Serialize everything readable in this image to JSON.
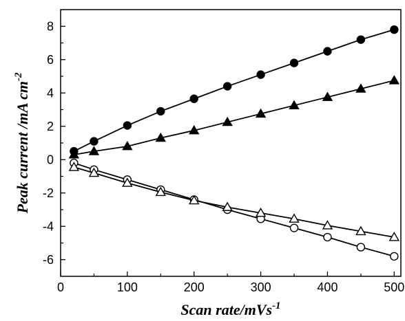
{
  "chart_data": {
    "type": "line",
    "title": "",
    "xlabel": {
      "text": "Scan rate/mVs",
      "sup": "-1"
    },
    "ylabel": {
      "text": "Peak current /mA cm",
      "sup": "-2"
    },
    "xlim": [
      0,
      510
    ],
    "ylim": [
      -7,
      9
    ],
    "xticks": [
      0,
      100,
      200,
      300,
      400,
      500
    ],
    "yticks": [
      -6,
      -4,
      -2,
      0,
      2,
      4,
      6,
      8
    ],
    "grid": false,
    "legend": "none",
    "x": [
      20,
      50,
      100,
      150,
      200,
      250,
      300,
      350,
      400,
      450,
      500
    ],
    "series": [
      {
        "marker": "circle-filled",
        "values": [
          0.5,
          1.1,
          2.05,
          2.9,
          3.65,
          4.4,
          5.1,
          5.8,
          6.5,
          7.2,
          7.8
        ]
      },
      {
        "marker": "triangle-filled",
        "values": [
          0.3,
          0.5,
          0.8,
          1.3,
          1.75,
          2.25,
          2.75,
          3.25,
          3.75,
          4.25,
          4.75
        ]
      },
      {
        "marker": "circle-open",
        "values": [
          -0.2,
          -0.6,
          -1.2,
          -1.8,
          -2.4,
          -3.0,
          -3.55,
          -4.1,
          -4.65,
          -5.25,
          -5.8
        ]
      },
      {
        "marker": "triangle-open",
        "values": [
          -0.45,
          -0.8,
          -1.4,
          -1.95,
          -2.45,
          -2.85,
          -3.2,
          -3.55,
          -3.95,
          -4.3,
          -4.65
        ]
      }
    ]
  }
}
